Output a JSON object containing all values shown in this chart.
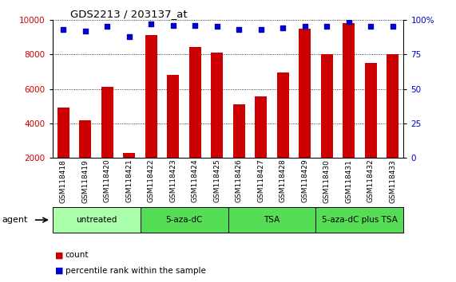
{
  "title": "GDS2213 / 203137_at",
  "samples": [
    "GSM118418",
    "GSM118419",
    "GSM118420",
    "GSM118421",
    "GSM118422",
    "GSM118423",
    "GSM118424",
    "GSM118425",
    "GSM118426",
    "GSM118427",
    "GSM118428",
    "GSM118429",
    "GSM118430",
    "GSM118431",
    "GSM118432",
    "GSM118433"
  ],
  "counts": [
    4900,
    4200,
    6100,
    2300,
    9100,
    6800,
    8400,
    8100,
    5100,
    5550,
    6950,
    9500,
    8000,
    9800,
    7500,
    8000
  ],
  "percentiles": [
    93,
    92,
    95,
    88,
    97,
    96,
    96,
    95,
    93,
    93,
    94,
    95,
    95,
    99,
    95,
    95
  ],
  "groups": [
    {
      "label": "untreated",
      "start": 0,
      "end": 4,
      "color": "#aaffaa"
    },
    {
      "label": "5-aza-dC",
      "start": 4,
      "end": 8,
      "color": "#55dd55"
    },
    {
      "label": "TSA",
      "start": 8,
      "end": 12,
      "color": "#55dd55"
    },
    {
      "label": "5-aza-dC plus TSA",
      "start": 12,
      "end": 16,
      "color": "#55dd55"
    }
  ],
  "bar_color": "#cc0000",
  "dot_color": "#0000cc",
  "ylim_left": [
    2000,
    10000
  ],
  "ylim_right": [
    0,
    100
  ],
  "yticks_left": [
    2000,
    4000,
    6000,
    8000,
    10000
  ],
  "yticks_right": [
    0,
    25,
    50,
    75,
    100
  ],
  "bg_color": "#ffffff",
  "agent_label": "agent",
  "legend_count_label": "count",
  "legend_pct_label": "percentile rank within the sample",
  "bar_width": 0.55
}
